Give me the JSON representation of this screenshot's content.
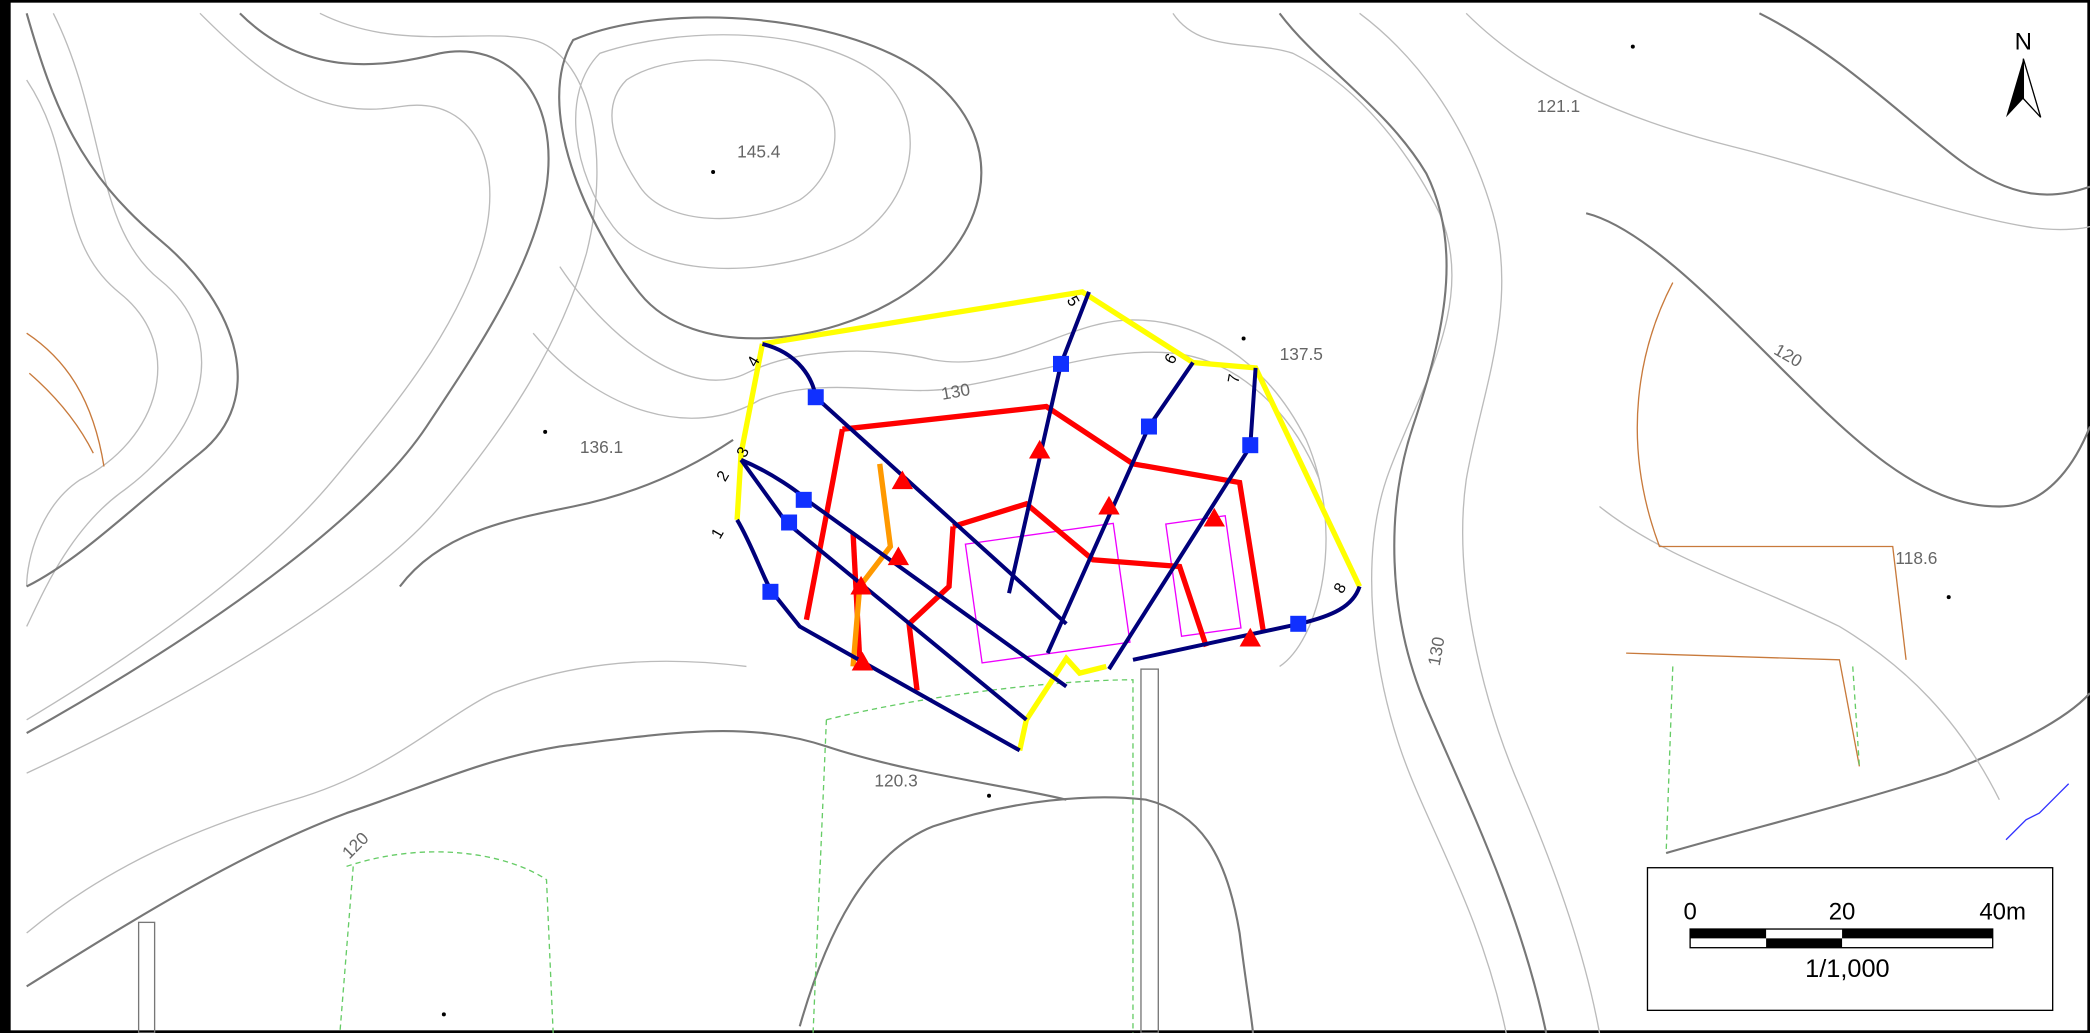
{
  "north_arrow": {
    "label": "N"
  },
  "spot_heights": [
    "145.4",
    "121.1",
    "136.1",
    "137.5",
    "118.6",
    "120.3"
  ],
  "contour_labels": [
    "130",
    "120",
    "130",
    "120"
  ],
  "survey_lines": [
    "1",
    "2",
    "3",
    "4",
    "5",
    "6",
    "7",
    "8"
  ],
  "scale_bar": {
    "ticks": [
      "0",
      "20",
      "40m"
    ],
    "ratio": "1/1,000"
  }
}
